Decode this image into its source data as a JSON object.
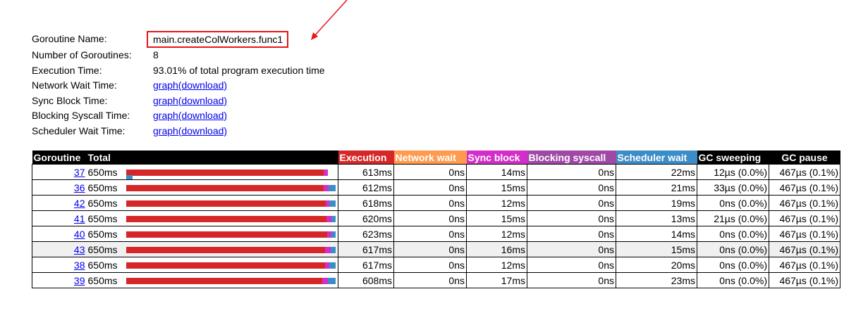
{
  "info": {
    "name_label": "Goroutine Name:",
    "name_value": "main.createColWorkers.func1",
    "count_label": "Number of Goroutines:",
    "count_value": "8",
    "exec_label": "Execution Time:",
    "exec_value": "93.01% of total program execution time",
    "network_label": "Network Wait Time:",
    "network_link": "graph(download)",
    "sync_label": "Sync Block Time:",
    "sync_link": "graph(download)",
    "syscall_label": "Blocking Syscall Time:",
    "syscall_link": "graph(download)",
    "sched_label": "Scheduler Wait Time:",
    "sched_link": "graph(download)"
  },
  "table": {
    "headers": {
      "goroutine": "Goroutine",
      "total": "Total",
      "execution": "Execution",
      "network": "Network wait",
      "sync": "Sync block",
      "syscall": "Blocking syscall",
      "sched": "Scheduler wait",
      "gcsweep": "GC sweeping",
      "gcpause": "GC pause"
    },
    "colors": {
      "execution": "#d62728",
      "network": "#ff9b4e",
      "sync": "#d42ec8",
      "syscall": "#9f48a6",
      "sched": "#3b8dc8"
    },
    "rows": [
      {
        "id": "37",
        "total": "650ms",
        "execution": "613ms",
        "network": "0ns",
        "sync": "14ms",
        "syscall": "0ns",
        "sched": "22ms",
        "gcsweep": "12µs (0.0%)",
        "gcpause": "467µs (0.1%)",
        "exec_ms": 613,
        "sync_ms": 14,
        "sched_ms": 22
      },
      {
        "id": "36",
        "total": "650ms",
        "execution": "612ms",
        "network": "0ns",
        "sync": "15ms",
        "syscall": "0ns",
        "sched": "21ms",
        "gcsweep": "33µs (0.0%)",
        "gcpause": "467µs (0.1%)",
        "exec_ms": 612,
        "sync_ms": 15,
        "sched_ms": 21
      },
      {
        "id": "42",
        "total": "650ms",
        "execution": "618ms",
        "network": "0ns",
        "sync": "12ms",
        "syscall": "0ns",
        "sched": "19ms",
        "gcsweep": "0ns (0.0%)",
        "gcpause": "467µs (0.1%)",
        "exec_ms": 618,
        "sync_ms": 12,
        "sched_ms": 19
      },
      {
        "id": "41",
        "total": "650ms",
        "execution": "620ms",
        "network": "0ns",
        "sync": "15ms",
        "syscall": "0ns",
        "sched": "13ms",
        "gcsweep": "21µs (0.0%)",
        "gcpause": "467µs (0.1%)",
        "exec_ms": 620,
        "sync_ms": 15,
        "sched_ms": 13
      },
      {
        "id": "40",
        "total": "650ms",
        "execution": "623ms",
        "network": "0ns",
        "sync": "12ms",
        "syscall": "0ns",
        "sched": "14ms",
        "gcsweep": "0ns (0.0%)",
        "gcpause": "467µs (0.1%)",
        "exec_ms": 623,
        "sync_ms": 12,
        "sched_ms": 14
      },
      {
        "id": "43",
        "total": "650ms",
        "execution": "617ms",
        "network": "0ns",
        "sync": "16ms",
        "syscall": "0ns",
        "sched": "15ms",
        "gcsweep": "0ns (0.0%)",
        "gcpause": "467µs (0.1%)",
        "exec_ms": 617,
        "sync_ms": 16,
        "sched_ms": 15
      },
      {
        "id": "38",
        "total": "650ms",
        "execution": "617ms",
        "network": "0ns",
        "sync": "12ms",
        "syscall": "0ns",
        "sched": "20ms",
        "gcsweep": "0ns (0.0%)",
        "gcpause": "467µs (0.1%)",
        "exec_ms": 617,
        "sync_ms": 12,
        "sched_ms": 20
      },
      {
        "id": "39",
        "total": "650ms",
        "execution": "608ms",
        "network": "0ns",
        "sync": "17ms",
        "syscall": "0ns",
        "sched": "23ms",
        "gcsweep": "0ns (0.0%)",
        "gcpause": "467µs (0.1%)",
        "exec_ms": 608,
        "sync_ms": 17,
        "sched_ms": 23
      }
    ]
  }
}
